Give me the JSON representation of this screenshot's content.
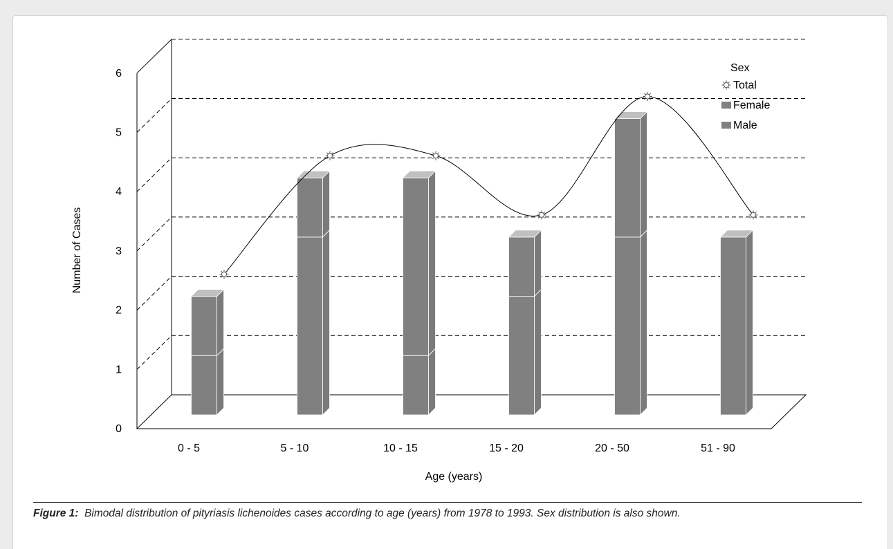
{
  "chart_data": {
    "type": "bar",
    "subtype": "3d-stacked-bar-with-line",
    "categories": [
      "0 -  5",
      "5 - 10",
      "10 - 15",
      "15 - 20",
      "20 - 50",
      "51 - 90"
    ],
    "series": [
      {
        "name": "Male",
        "values": [
          1,
          3,
          1,
          2,
          3,
          3
        ],
        "color": "#808080"
      },
      {
        "name": "Female",
        "values": [
          1,
          1,
          3,
          1,
          2,
          0
        ],
        "color": "#808080"
      },
      {
        "name": "Total",
        "values": [
          2,
          4,
          4,
          3,
          5,
          3
        ],
        "kind": "line",
        "marker": "sun"
      }
    ],
    "xlabel": "Age (years)",
    "ylabel": "Number of Cases",
    "y_ticks": [
      "0",
      "1",
      "2",
      "3",
      "4",
      "5",
      "6"
    ],
    "ylim": [
      0,
      6
    ],
    "grid": "dashed",
    "legend": {
      "title": "Sex",
      "position": "top-right",
      "items": [
        "Total",
        "Female",
        "Male"
      ]
    }
  },
  "caption": {
    "label": "Figure 1:",
    "text": "Bimodal distribution of pityriasis lichenoides cases according to age (years) from 1978 to 1993. Sex distribution is also shown."
  }
}
